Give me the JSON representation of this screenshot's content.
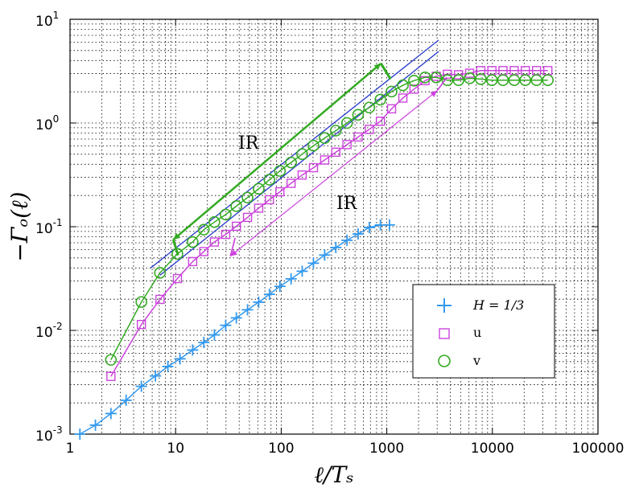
{
  "chart_data": {
    "type": "line",
    "title": "",
    "xlabel": "ℓ/Tₛ",
    "ylabel": "−Γₒ(ℓ)",
    "xscale": "log",
    "yscale": "log",
    "xlim": [
      1,
      100000
    ],
    "ylim": [
      0.001,
      10
    ],
    "grid": true,
    "legend_position": "lower-right",
    "x_ticks": [
      {
        "value": 1,
        "label": "1"
      },
      {
        "value": 10,
        "label": "10"
      },
      {
        "value": 100,
        "label": "100"
      },
      {
        "value": 1000,
        "label": "1000"
      },
      {
        "value": 10000,
        "label": "10000"
      },
      {
        "value": 100000,
        "label": "100000"
      }
    ],
    "y_ticks": [
      {
        "value": 0.001,
        "base": "10",
        "exp": "-3"
      },
      {
        "value": 0.01,
        "base": "10",
        "exp": "-2"
      },
      {
        "value": 0.1,
        "base": "10",
        "exp": "-1"
      },
      {
        "value": 1,
        "base": "10",
        "exp": "0"
      },
      {
        "value": 10,
        "base": "10",
        "exp": "1"
      }
    ],
    "series": [
      {
        "name": "H = 1/3",
        "color": "#3399ee",
        "marker": "plus",
        "x": [
          1.24,
          1.74,
          2.44,
          3.4,
          4.74,
          6.44,
          8.45,
          11.0,
          14.5,
          18.5,
          23.3,
          29.8,
          37.6,
          48.0,
          61.2,
          77.4,
          97.2,
          124,
          158,
          202,
          258,
          329,
          420,
          535,
          683,
          870,
          1060
        ],
        "y": [
          0.001,
          0.00122,
          0.00158,
          0.00212,
          0.00289,
          0.00364,
          0.00449,
          0.00532,
          0.00647,
          0.00766,
          0.00906,
          0.0112,
          0.0132,
          0.0158,
          0.0187,
          0.0223,
          0.0266,
          0.0314,
          0.0372,
          0.0445,
          0.0533,
          0.063,
          0.074,
          0.0851,
          0.0982,
          0.104,
          0.104
        ]
      },
      {
        "name": "u",
        "color": "#cc44dd",
        "marker": "square",
        "x": [
          2.44,
          4.74,
          7.11,
          10.4,
          14.5,
          18.5,
          23.3,
          29.8,
          37.6,
          48.0,
          61.2,
          77.4,
          97.2,
          124,
          158,
          202,
          258,
          329,
          420,
          535,
          683,
          870,
          1110,
          1420,
          1810,
          2300,
          2940,
          3750,
          4780,
          6090,
          7770,
          9900,
          12600,
          16100,
          20500,
          26200,
          33500
        ],
        "y": [
          0.0036,
          0.0114,
          0.0199,
          0.0316,
          0.0461,
          0.0576,
          0.0712,
          0.0843,
          0.101,
          0.123,
          0.151,
          0.182,
          0.217,
          0.262,
          0.315,
          0.371,
          0.44,
          0.523,
          0.619,
          0.733,
          0.868,
          1.04,
          1.37,
          1.74,
          2.12,
          2.56,
          2.82,
          2.95,
          2.92,
          3.02,
          3.2,
          3.2,
          3.2,
          3.2,
          3.2,
          3.2,
          3.2
        ]
      },
      {
        "name": "v",
        "color": "#33aa22",
        "marker": "circle",
        "x": [
          2.44,
          4.74,
          7.11,
          10.4,
          14.5,
          18.5,
          23.3,
          29.8,
          37.6,
          48.0,
          61.2,
          77.4,
          97.2,
          124,
          158,
          202,
          258,
          329,
          420,
          535,
          683,
          870,
          1110,
          1420,
          1810,
          2300,
          2940,
          3750,
          4780,
          6090,
          7770,
          9900,
          12600,
          16100,
          20500,
          26200,
          33500
        ],
        "y": [
          0.0052,
          0.0188,
          0.0359,
          0.0547,
          0.0712,
          0.0937,
          0.111,
          0.131,
          0.158,
          0.191,
          0.232,
          0.284,
          0.345,
          0.416,
          0.501,
          0.605,
          0.716,
          0.844,
          1.0,
          1.2,
          1.41,
          1.68,
          2.01,
          2.31,
          2.56,
          2.75,
          2.75,
          2.59,
          2.59,
          2.7,
          2.65,
          2.59,
          2.59,
          2.59,
          2.59,
          2.59,
          2.59
        ]
      }
    ],
    "fit_lines": [
      {
        "name": "fit-line-u",
        "color": "#3344cc",
        "x": [
          7.1,
          3100
        ],
        "y": [
          0.034,
          4.9
        ]
      },
      {
        "name": "fit-line-v",
        "color": "#3344cc",
        "x": [
          5.8,
          3100
        ],
        "y": [
          0.04,
          6.3
        ]
      }
    ],
    "annotations": [
      {
        "name": "annotation-ir-v",
        "text": "IR",
        "x": 30,
        "y": 1.5,
        "color": "#000000"
      },
      {
        "name": "annotation-ir-u",
        "text": "IR",
        "x": 300,
        "y": 0.16,
        "color": "#000000"
      }
    ],
    "range_markers": [
      {
        "name": "ir-range-arrow-v",
        "color": "#33aa22",
        "x": [
          9.5,
          880
        ],
        "y": [
          0.075,
          3.75
        ],
        "tick_end_y": [
          0.053,
          2.65
        ],
        "stroke_width": 2.5
      },
      {
        "name": "ir-range-arrow-u",
        "color": "#cc44dd",
        "x": [
          33,
          3000
        ],
        "y": [
          0.052,
          2.05
        ],
        "tick_end_y": [
          0.078,
          2.75
        ],
        "stroke_width": 1.2
      }
    ]
  }
}
